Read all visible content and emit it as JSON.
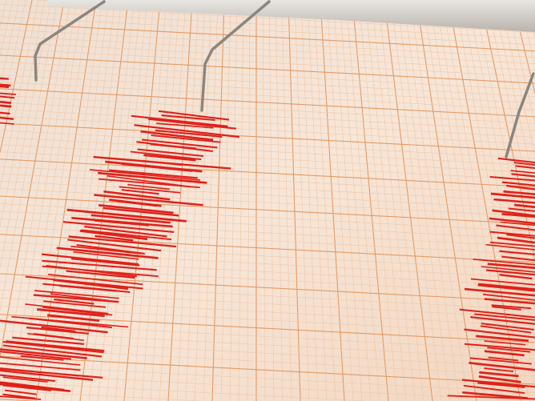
{
  "scene": {
    "subject": "seismograph",
    "colors": {
      "paper": "#f5e4d6",
      "grid_minor": "#eec7a6",
      "grid_major": "#e49a62",
      "trace": "#e0201a",
      "needle": "#8a8680",
      "frame": "#cfcac2"
    }
  }
}
